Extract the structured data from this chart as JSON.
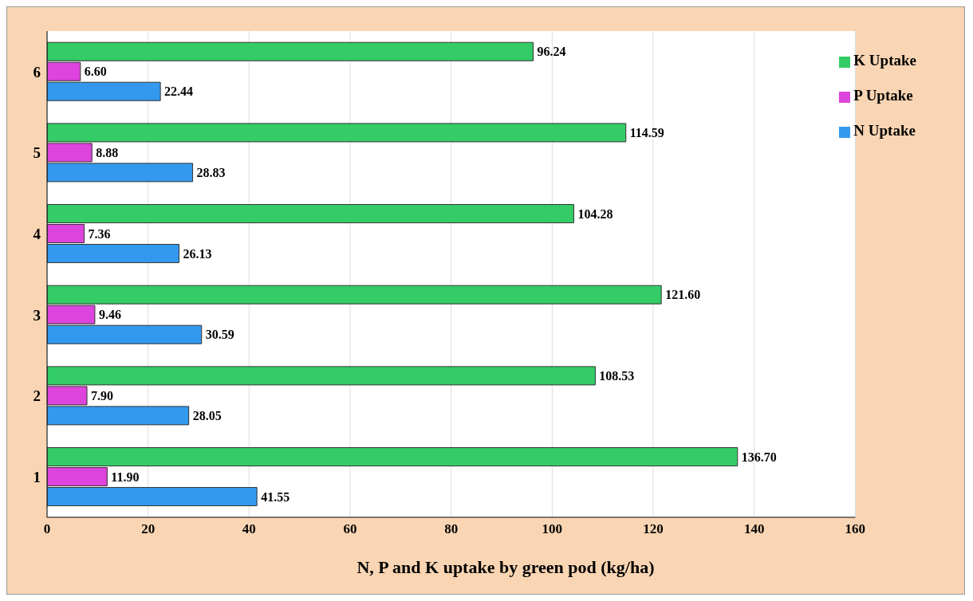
{
  "chart_data": {
    "type": "bar",
    "orientation": "horizontal",
    "xlabel": "N, P and K uptake by green pod (kg/ha)",
    "categories": [
      "6",
      "5",
      "4",
      "3",
      "2",
      "1"
    ],
    "series": [
      {
        "name": "K Uptake",
        "color": "#33cc66",
        "values": [
          96.24,
          114.59,
          104.28,
          121.6,
          108.53,
          136.7
        ],
        "value_labels": [
          "96.24",
          "114.59",
          "104.28",
          "121.60",
          "108.53",
          "136.70"
        ]
      },
      {
        "name": "P Uptake",
        "color": "#dd44dd",
        "values": [
          6.6,
          8.88,
          7.36,
          9.46,
          7.9,
          11.9
        ],
        "value_labels": [
          "6.60",
          "8.88",
          "7.36",
          "9.46",
          "7.90",
          "11.90"
        ]
      },
      {
        "name": "N Uptake",
        "color": "#3399ee",
        "values": [
          22.44,
          28.83,
          26.13,
          30.59,
          28.05,
          41.55
        ],
        "value_labels": [
          "22.44",
          "28.83",
          "26.13",
          "30.59",
          "28.05",
          "41.55"
        ]
      }
    ],
    "xlim": [
      0,
      160
    ],
    "xticks": [
      0,
      20,
      40,
      60,
      80,
      100,
      120,
      140,
      160
    ],
    "grid": "x",
    "legend": "top right"
  }
}
